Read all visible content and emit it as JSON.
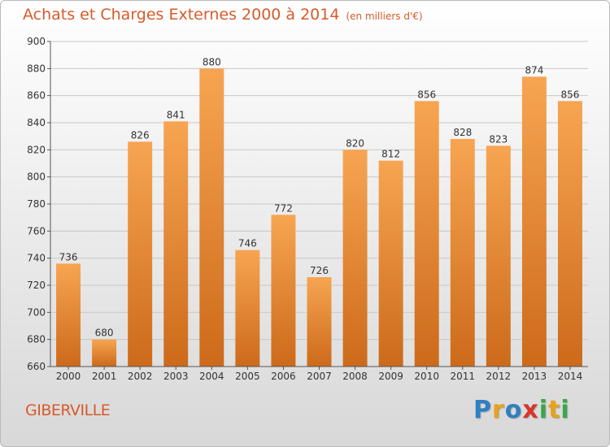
{
  "title": "Achats et Charges Externes 2000 à 2014",
  "unit": "(en milliers d'€)",
  "town": "GIBERVILLE",
  "logo": {
    "text": "Proxiti",
    "letters": [
      {
        "ch": "P",
        "color": "#2f7fc1"
      },
      {
        "ch": "r",
        "color": "#e8a21a"
      },
      {
        "ch": "o",
        "color": "#2f7fc1"
      },
      {
        "ch": "x",
        "color": "#d9342b"
      },
      {
        "ch": "i",
        "color": "#3aa64a"
      },
      {
        "ch": "t",
        "color": "#e8a21a"
      },
      {
        "ch": "i",
        "color": "#3aa64a"
      }
    ]
  },
  "colors": {
    "title": "#d85a2a",
    "bar_top": "#f7a552",
    "bar_bottom": "#cc6a1a",
    "grid": "#c8c8c8"
  },
  "chart_data": {
    "type": "bar",
    "categories": [
      "2000",
      "2001",
      "2002",
      "2003",
      "2004",
      "2005",
      "2006",
      "2007",
      "2008",
      "2009",
      "2010",
      "2011",
      "2012",
      "2013",
      "2014"
    ],
    "values": [
      736,
      680,
      826,
      841,
      880,
      746,
      772,
      726,
      820,
      812,
      856,
      828,
      823,
      874,
      856
    ],
    "ylim": [
      660,
      900
    ],
    "yticks": [
      660,
      680,
      700,
      720,
      740,
      760,
      780,
      800,
      820,
      840,
      860,
      880,
      900
    ],
    "grid": true
  }
}
